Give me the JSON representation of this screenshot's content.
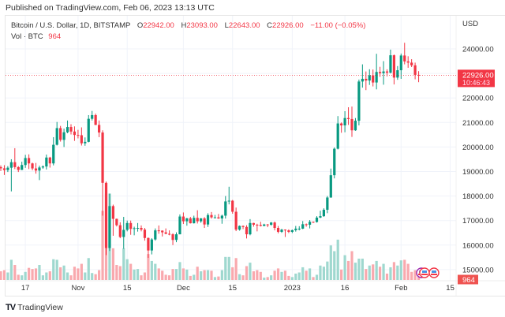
{
  "published": "Published on TradingView.com, Feb 06, 2023 13:13 UTC",
  "legend": {
    "symbol": "Bitcoin / U.S. Dollar, 1D, BITSTAMP",
    "o_label": "O",
    "o": "22942.00",
    "h_label": "H",
    "h": "23093.00",
    "l_label": "L",
    "l": "22643.00",
    "c_label": "C",
    "c": "22926.00",
    "change": "−11.00 (−0.05%)",
    "vol_label": "Vol · BTC",
    "vol": "964"
  },
  "logo": {
    "mark": "TV",
    "text": "TradingView"
  },
  "colors": {
    "up": "#089981",
    "down": "#f23645",
    "vol_up": "#9fd8cf",
    "vol_down": "#f9a9ae",
    "grid": "#f0f3fa",
    "text": "#131722"
  },
  "chart_data": {
    "type": "candlestick",
    "currency_label": "USD",
    "grid": true,
    "y_ticks": [
      {
        "value": 24000,
        "label": "24000.00"
      },
      {
        "value": 23000,
        "label": ""
      },
      {
        "value": 22000,
        "label": "22000.00"
      },
      {
        "value": 21000,
        "label": "21000.00"
      },
      {
        "value": 20000,
        "label": "20000.00"
      },
      {
        "value": 19000,
        "label": "19000.00"
      },
      {
        "value": 18000,
        "label": "18000.00"
      },
      {
        "value": 17000,
        "label": "17000.00"
      },
      {
        "value": 16000,
        "label": "16000.00"
      },
      {
        "value": 15000,
        "label": "15000.00"
      }
    ],
    "x_ticks": [
      {
        "date": "2022-10-17",
        "label": "17"
      },
      {
        "date": "2022-11-01",
        "label": "Nov"
      },
      {
        "date": "2022-11-15",
        "label": "15"
      },
      {
        "date": "2022-12-01",
        "label": "Dec"
      },
      {
        "date": "2022-12-15",
        "label": "15"
      },
      {
        "date": "2023-01-01",
        "label": "2023"
      },
      {
        "date": "2023-01-16",
        "label": "16"
      },
      {
        "date": "2023-02-01",
        "label": "Feb"
      },
      {
        "date": "2023-02-15",
        "label": "15"
      }
    ],
    "last_price": {
      "value": 22926,
      "label": "22926.00",
      "countdown": "10:46:43"
    },
    "last_volume_label": "964",
    "columns": [
      "date",
      "open",
      "high",
      "low",
      "close",
      "volume"
    ],
    "candles": [
      [
        "2022-10-10",
        19180,
        19250,
        19020,
        19130,
        1500
      ],
      [
        "2022-10-11",
        19130,
        19260,
        18860,
        19060,
        1700
      ],
      [
        "2022-10-12",
        19060,
        19220,
        18980,
        19155,
        1300
      ],
      [
        "2022-10-13",
        19155,
        19500,
        18190,
        19380,
        3500
      ],
      [
        "2022-10-14",
        19380,
        19950,
        19100,
        19180,
        2600
      ],
      [
        "2022-10-15",
        19180,
        19220,
        18980,
        19065,
        900
      ],
      [
        "2022-10-16",
        19065,
        19400,
        19060,
        19265,
        800
      ],
      [
        "2022-10-17",
        19265,
        19680,
        19150,
        19550,
        1400
      ],
      [
        "2022-10-18",
        19550,
        19700,
        19100,
        19330,
        2100
      ],
      [
        "2022-10-19",
        19330,
        19360,
        19050,
        19125,
        1900
      ],
      [
        "2022-10-20",
        19125,
        19350,
        18910,
        19040,
        2000
      ],
      [
        "2022-10-21",
        19040,
        19240,
        18650,
        19165,
        2600
      ],
      [
        "2022-10-22",
        19165,
        19250,
        19110,
        19205,
        800
      ],
      [
        "2022-10-23",
        19205,
        19690,
        19080,
        19570,
        1300
      ],
      [
        "2022-10-24",
        19570,
        19600,
        19160,
        19330,
        1500
      ],
      [
        "2022-10-25",
        19330,
        20400,
        19250,
        20090,
        3600
      ],
      [
        "2022-10-26",
        20090,
        21020,
        20060,
        20770,
        3500
      ],
      [
        "2022-10-27",
        20770,
        20860,
        20220,
        20290,
        2200
      ],
      [
        "2022-10-28",
        20290,
        20750,
        20000,
        20600,
        2500
      ],
      [
        "2022-10-29",
        20600,
        21080,
        20560,
        20815,
        1300
      ],
      [
        "2022-10-30",
        20815,
        20930,
        20510,
        20630,
        800
      ],
      [
        "2022-10-31",
        20630,
        20840,
        20250,
        20490,
        2300
      ],
      [
        "2022-11-01",
        20490,
        20700,
        20350,
        20480,
        2000
      ],
      [
        "2022-11-02",
        20480,
        20800,
        20060,
        20150,
        2800
      ],
      [
        "2022-11-03",
        20150,
        20390,
        20050,
        20210,
        1300
      ],
      [
        "2022-11-04",
        20210,
        21300,
        20190,
        21150,
        3800
      ],
      [
        "2022-11-05",
        21150,
        21470,
        21080,
        21300,
        1200
      ],
      [
        "2022-11-06",
        21300,
        21360,
        20890,
        20900,
        1000
      ],
      [
        "2022-11-07",
        20900,
        21080,
        20400,
        20590,
        1700
      ],
      [
        "2022-11-08",
        20590,
        20680,
        17200,
        18540,
        12000
      ],
      [
        "2022-11-09",
        18540,
        18590,
        15590,
        15880,
        15000
      ],
      [
        "2022-11-10",
        15880,
        18100,
        15760,
        17590,
        15000
      ],
      [
        "2022-11-11",
        17590,
        17650,
        16380,
        17070,
        5500
      ],
      [
        "2022-11-12",
        17070,
        17080,
        16760,
        16810,
        2600
      ],
      [
        "2022-11-13",
        16810,
        16930,
        16280,
        16330,
        2400
      ],
      [
        "2022-11-14",
        16330,
        17150,
        15850,
        16620,
        5500
      ],
      [
        "2022-11-15",
        16620,
        17000,
        16560,
        16900,
        3600
      ],
      [
        "2022-11-16",
        16900,
        17000,
        16420,
        16660,
        2800
      ],
      [
        "2022-11-17",
        16660,
        16750,
        16400,
        16690,
        1800
      ],
      [
        "2022-11-18",
        16690,
        16900,
        16550,
        16700,
        1900
      ],
      [
        "2022-11-19",
        16700,
        16800,
        16560,
        16630,
        800
      ],
      [
        "2022-11-20",
        16630,
        16700,
        16180,
        16290,
        1300
      ],
      [
        "2022-11-21",
        16290,
        16310,
        15480,
        15780,
        4500
      ],
      [
        "2022-11-22",
        15780,
        16280,
        15620,
        16230,
        3300
      ],
      [
        "2022-11-23",
        16230,
        16680,
        16180,
        16600,
        2800
      ],
      [
        "2022-11-24",
        16600,
        16800,
        16460,
        16590,
        2000
      ],
      [
        "2022-11-25",
        16590,
        16600,
        16350,
        16520,
        1600
      ],
      [
        "2022-11-26",
        16520,
        16680,
        16440,
        16460,
        900
      ],
      [
        "2022-11-27",
        16460,
        16600,
        16400,
        16440,
        800
      ],
      [
        "2022-11-28",
        16440,
        16480,
        16000,
        16210,
        1900
      ],
      [
        "2022-11-29",
        16210,
        16520,
        16120,
        16440,
        1900
      ],
      [
        "2022-11-30",
        16440,
        17250,
        16440,
        17165,
        3100
      ],
      [
        "2022-12-01",
        17165,
        17330,
        16860,
        16970,
        2000
      ],
      [
        "2022-12-02",
        16970,
        17110,
        16790,
        17090,
        1800
      ],
      [
        "2022-12-03",
        17090,
        17150,
        16880,
        16890,
        700
      ],
      [
        "2022-12-04",
        16890,
        17200,
        16880,
        17110,
        900
      ],
      [
        "2022-12-05",
        17110,
        17420,
        16880,
        16970,
        2300
      ],
      [
        "2022-12-06",
        16970,
        17100,
        16910,
        17090,
        1500
      ],
      [
        "2022-12-07",
        17090,
        17140,
        16700,
        16840,
        1700
      ],
      [
        "2022-12-08",
        16840,
        17300,
        16740,
        17225,
        1700
      ],
      [
        "2022-12-09",
        17225,
        17350,
        17080,
        17130,
        1600
      ],
      [
        "2022-12-10",
        17130,
        17230,
        17090,
        17130,
        500
      ],
      [
        "2022-12-11",
        17130,
        17270,
        17070,
        17085,
        600
      ],
      [
        "2022-12-12",
        17085,
        17240,
        16870,
        17200,
        1700
      ],
      [
        "2022-12-13",
        17200,
        18000,
        17080,
        17780,
        4000
      ],
      [
        "2022-12-14",
        17780,
        18380,
        17660,
        17810,
        4000
      ],
      [
        "2022-12-15",
        17810,
        17840,
        17280,
        17360,
        2200
      ],
      [
        "2022-12-16",
        17360,
        17530,
        16570,
        16630,
        3800
      ],
      [
        "2022-12-17",
        16630,
        16800,
        16590,
        16780,
        1000
      ],
      [
        "2022-12-18",
        16780,
        16800,
        16650,
        16740,
        800
      ],
      [
        "2022-12-19",
        16740,
        16810,
        16270,
        16440,
        2400
      ],
      [
        "2022-12-20",
        16440,
        17060,
        16400,
        16900,
        3000
      ],
      [
        "2022-12-21",
        16900,
        16910,
        16750,
        16830,
        1500
      ],
      [
        "2022-12-22",
        16830,
        16870,
        16560,
        16820,
        1700
      ],
      [
        "2022-12-23",
        16820,
        16950,
        16760,
        16780,
        1400
      ],
      [
        "2022-12-24",
        16780,
        16870,
        16770,
        16840,
        400
      ],
      [
        "2022-12-25",
        16840,
        16860,
        16730,
        16830,
        500
      ],
      [
        "2022-12-26",
        16830,
        16940,
        16790,
        16920,
        800
      ],
      [
        "2022-12-27",
        16920,
        16960,
        16600,
        16700,
        1600
      ],
      [
        "2022-12-28",
        16700,
        16780,
        16480,
        16540,
        2000
      ],
      [
        "2022-12-29",
        16540,
        16660,
        16500,
        16630,
        1400
      ],
      [
        "2022-12-30",
        16630,
        16640,
        16330,
        16600,
        1600
      ],
      [
        "2022-12-31",
        16600,
        16640,
        16490,
        16540,
        700
      ],
      [
        "2023-01-01",
        16540,
        16630,
        16490,
        16610,
        500
      ],
      [
        "2023-01-02",
        16610,
        16780,
        16550,
        16670,
        1100
      ],
      [
        "2023-01-03",
        16670,
        16770,
        16600,
        16670,
        1300
      ],
      [
        "2023-01-04",
        16670,
        16980,
        16650,
        16850,
        2200
      ],
      [
        "2023-01-05",
        16850,
        16880,
        16750,
        16830,
        1600
      ],
      [
        "2023-01-06",
        16830,
        17020,
        16680,
        16950,
        2000
      ],
      [
        "2023-01-07",
        16950,
        16960,
        16900,
        16940,
        500
      ],
      [
        "2023-01-08",
        16940,
        17180,
        16920,
        17120,
        900
      ],
      [
        "2023-01-09",
        17120,
        17400,
        17100,
        17180,
        2500
      ],
      [
        "2023-01-10",
        17180,
        17500,
        17150,
        17440,
        2300
      ],
      [
        "2023-01-11",
        17440,
        18000,
        17300,
        17940,
        3200
      ],
      [
        "2023-01-12",
        17940,
        19120,
        17930,
        18850,
        6000
      ],
      [
        "2023-01-13",
        18850,
        19980,
        18720,
        19930,
        5000
      ],
      [
        "2023-01-14",
        19930,
        21260,
        19900,
        20960,
        7000
      ],
      [
        "2023-01-15",
        20960,
        21000,
        20580,
        20880,
        1800
      ],
      [
        "2023-01-16",
        20880,
        21460,
        20600,
        21180,
        4300
      ],
      [
        "2023-01-17",
        21180,
        21620,
        20900,
        21140,
        3300
      ],
      [
        "2023-01-18",
        21140,
        21650,
        20410,
        20680,
        5000
      ],
      [
        "2023-01-19",
        20680,
        21180,
        20660,
        21070,
        3000
      ],
      [
        "2023-01-20",
        21070,
        22750,
        20880,
        22670,
        3700
      ],
      [
        "2023-01-21",
        22670,
        23370,
        22420,
        22780,
        3700
      ],
      [
        "2023-01-22",
        22780,
        23080,
        22320,
        22710,
        1900
      ],
      [
        "2023-01-23",
        22710,
        23170,
        22530,
        22920,
        2500
      ],
      [
        "2023-01-24",
        22920,
        23160,
        22470,
        22630,
        2700
      ],
      [
        "2023-01-25",
        22630,
        23800,
        22350,
        23060,
        3300
      ],
      [
        "2023-01-26",
        23060,
        23270,
        22860,
        23010,
        2300
      ],
      [
        "2023-01-27",
        23010,
        23500,
        22540,
        23080,
        2800
      ],
      [
        "2023-01-28",
        23080,
        23170,
        22880,
        23030,
        1100
      ],
      [
        "2023-01-29",
        23030,
        23970,
        23000,
        23740,
        2200
      ],
      [
        "2023-01-30",
        23740,
        23770,
        22550,
        22830,
        3100
      ],
      [
        "2023-01-31",
        22830,
        23300,
        22740,
        23130,
        2500
      ],
      [
        "2023-02-01",
        23130,
        23810,
        22780,
        23730,
        3400
      ],
      [
        "2023-02-02",
        23730,
        24250,
        23370,
        23490,
        3500
      ],
      [
        "2023-02-03",
        23490,
        23700,
        23230,
        23440,
        2800
      ],
      [
        "2023-02-04",
        23440,
        23580,
        23260,
        23330,
        1400
      ],
      [
        "2023-02-05",
        23330,
        23440,
        22760,
        22942,
        1700
      ],
      [
        "2023-02-06",
        22942,
        23093,
        22643,
        22926,
        964
      ]
    ]
  }
}
